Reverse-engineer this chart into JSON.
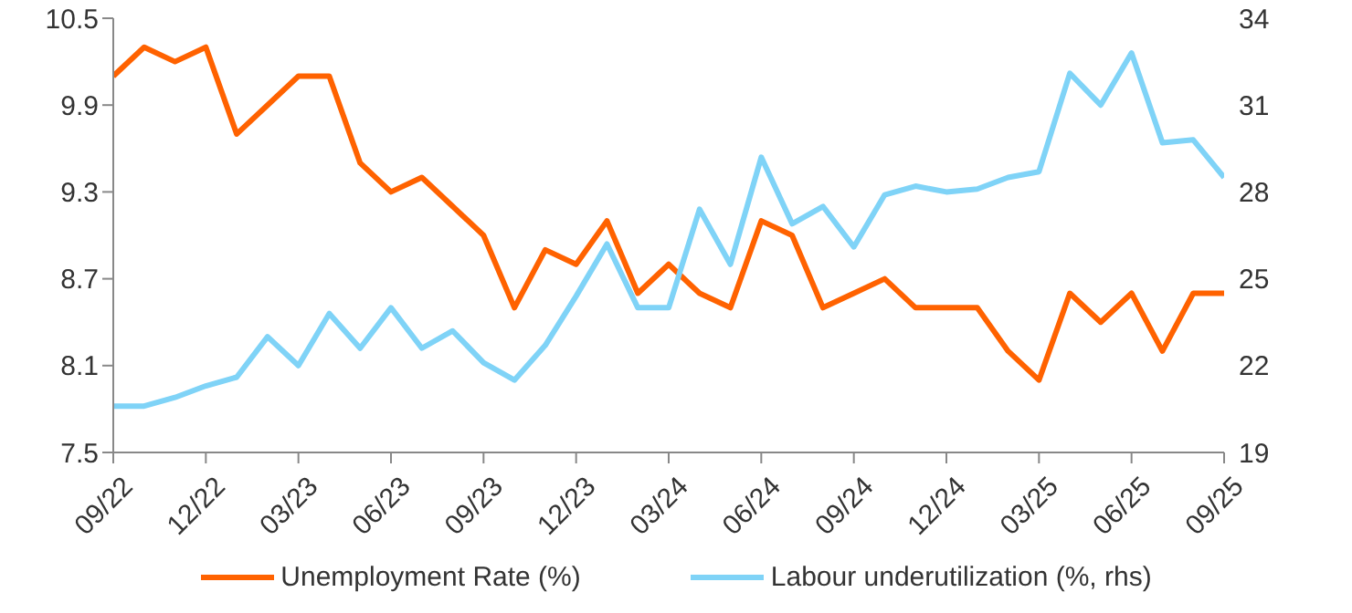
{
  "chart_data": {
    "type": "line",
    "categories": [
      "09/22",
      null,
      null,
      "12/22",
      null,
      null,
      "03/23",
      null,
      null,
      "06/23",
      null,
      null,
      "09/23",
      null,
      null,
      "12/23",
      null,
      null,
      "03/24",
      null,
      null,
      "06/24",
      null,
      null,
      "09/24",
      null,
      null,
      "12/24",
      null,
      null,
      "03/25",
      null,
      null,
      "06/25",
      null,
      null,
      "09/25"
    ],
    "series": [
      {
        "name": "Unemployment Rate (%)",
        "color": "#ff6200",
        "values": [
          10.1,
          10.3,
          10.2,
          10.3,
          9.7,
          9.9,
          10.1,
          10.1,
          9.5,
          9.3,
          9.4,
          9.2,
          9.0,
          8.5,
          8.9,
          8.8,
          9.1,
          8.6,
          8.8,
          8.6,
          8.5,
          9.1,
          9.0,
          8.5,
          8.6,
          8.7,
          8.5,
          8.5,
          8.5,
          8.2,
          8.0,
          8.6,
          8.4,
          8.6,
          8.2,
          8.6,
          8.6
        ]
      },
      {
        "name": "Labour underutilization (%, rhs)",
        "color": "#7fd3f7",
        "axis": "y2",
        "values": [
          20.6,
          20.6,
          20.9,
          21.3,
          21.6,
          23.0,
          22.0,
          23.8,
          22.6,
          24.0,
          22.6,
          23.2,
          22.1,
          21.5,
          22.7,
          24.4,
          26.2,
          24.0,
          24.0,
          27.4,
          25.5,
          29.2,
          26.9,
          27.5,
          26.1,
          27.9,
          28.2,
          28.0,
          28.1,
          28.5,
          28.7,
          32.1,
          31.0,
          32.8,
          29.7,
          29.8,
          28.5
        ]
      }
    ],
    "ylim": [
      7.5,
      10.5
    ],
    "yticks": [
      7.5,
      8.1,
      8.7,
      9.3,
      9.9,
      10.5
    ],
    "y2lim": [
      19,
      34
    ],
    "y2ticks": [
      19,
      22,
      25,
      28,
      31,
      34
    ],
    "grid": false,
    "legend": "bottom",
    "marker": "none",
    "line_style": "solid"
  }
}
